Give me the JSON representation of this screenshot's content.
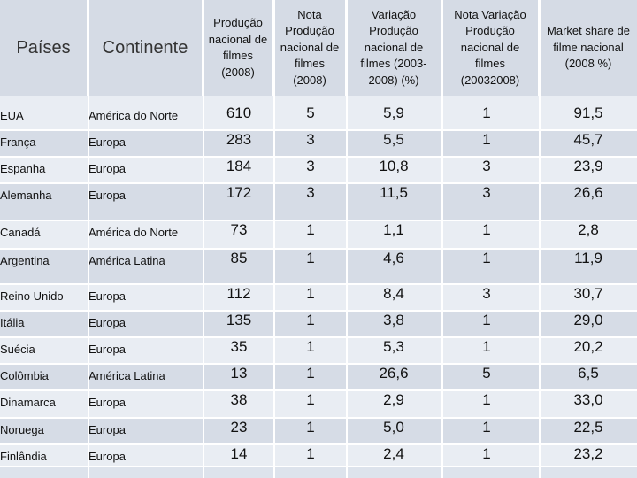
{
  "headers": {
    "paises": "Países",
    "continente": "Continente",
    "producao": [
      "Produção",
      "nacional de",
      "filmes",
      "(2008)"
    ],
    "nota_producao": [
      "Nota",
      "Produção",
      "nacional de",
      "filmes",
      "(2008)"
    ],
    "variacao": [
      "Variação",
      "Produção",
      "nacional de",
      "filmes (2003-",
      "2008) (%)"
    ],
    "nota_variacao": [
      "Nota Variação",
      "Produção",
      "nacional de",
      "filmes",
      "(20032008)"
    ],
    "market_share": [
      "Market share de",
      "filme nacional",
      "(2008 %)"
    ]
  },
  "rows": [
    {
      "pais": "EUA",
      "continente": "América do Norte",
      "producao": "610",
      "nota_prod": "5",
      "variacao": "5,9",
      "nota_var": "1",
      "share": "91,5"
    },
    {
      "pais": "França",
      "continente": "Europa",
      "producao": "283",
      "nota_prod": "3",
      "variacao": "5,5",
      "nota_var": "1",
      "share": "45,7"
    },
    {
      "pais": "Espanha",
      "continente": "Europa",
      "producao": "184",
      "nota_prod": "3",
      "variacao": "10,8",
      "nota_var": "3",
      "share": "23,9"
    },
    {
      "pais": "Alemanha",
      "continente": "Europa",
      "producao": "172",
      "nota_prod": "3",
      "variacao": "11,5",
      "nota_var": "3",
      "share": "26,6"
    },
    {
      "pais": "Canadá",
      "continente": "América do Norte",
      "producao": "73",
      "nota_prod": "1",
      "variacao": "1,1",
      "nota_var": "1",
      "share": "2,8"
    },
    {
      "pais": "Argentina",
      "continente": "América Latina",
      "producao": "85",
      "nota_prod": "1",
      "variacao": "4,6",
      "nota_var": "1",
      "share": "11,9"
    },
    {
      "pais": "Reino Unido",
      "continente": "Europa",
      "producao": "112",
      "nota_prod": "1",
      "variacao": "8,4",
      "nota_var": "3",
      "share": "30,7"
    },
    {
      "pais": "Itália",
      "continente": "Europa",
      "producao": "135",
      "nota_prod": "1",
      "variacao": "3,8",
      "nota_var": "1",
      "share": "29,0"
    },
    {
      "pais": "Suécia",
      "continente": "Europa",
      "producao": "35",
      "nota_prod": "1",
      "variacao": "5,3",
      "nota_var": "1",
      "share": "20,2"
    },
    {
      "pais": "Colômbia",
      "continente": "América Latina",
      "producao": "13",
      "nota_prod": "1",
      "variacao": "26,6",
      "nota_var": "5",
      "share": "6,5"
    },
    {
      "pais": "Dinamarca",
      "continente": "Europa",
      "producao": "38",
      "nota_prod": "1",
      "variacao": "2,9",
      "nota_var": "1",
      "share": "33,0"
    },
    {
      "pais": "Noruega",
      "continente": "Europa",
      "producao": "23",
      "nota_prod": "1",
      "variacao": "5,0",
      "nota_var": "1",
      "share": "22,5"
    },
    {
      "pais": "Finlândia",
      "continente": "Europa",
      "producao": "14",
      "nota_prod": "1",
      "variacao": "2,4",
      "nota_var": "1",
      "share": "23,2"
    }
  ]
}
